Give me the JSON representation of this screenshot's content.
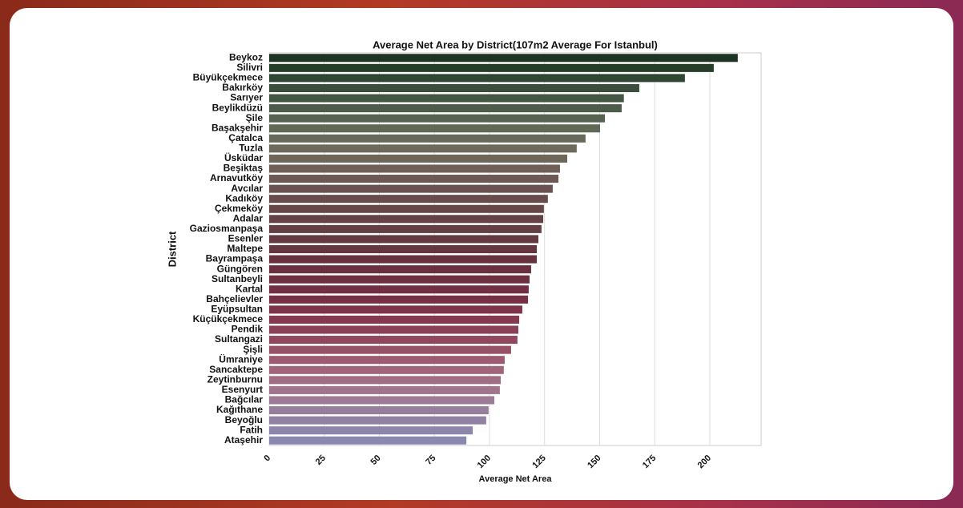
{
  "chart_data": {
    "type": "barh",
    "title": "Average Net Area by District(107m2 Average For Istanbul)",
    "xlabel": "Average Net Area",
    "ylabel": "District",
    "categories": [
      "Beykoz",
      "Silivri",
      "Büyükçekmece",
      "Bakırköy",
      "Sarıyer",
      "Beylikdüzü",
      "Şile",
      "Başakşehir",
      "Çatalca",
      "Tuzla",
      "Üsküdar",
      "Beşiktaş",
      "Arnavutköy",
      "Avcılar",
      "Kadıköy",
      "Çekmeköy",
      "Adalar",
      "Gaziosmanpaşa",
      "Esenler",
      "Maltepe",
      "Bayrampaşa",
      "Güngören",
      "Sultanbeyli",
      "Kartal",
      "Bahçelievler",
      "Eyüpsultan",
      "Küçükçekmece",
      "Pendik",
      "Sultangazi",
      "Şişli",
      "Ümraniye",
      "Sancaktepe",
      "Zeytinburnu",
      "Esenyurt",
      "Bağcılar",
      "Kağıthane",
      "Beyoğlu",
      "Fatih",
      "Ataşehir"
    ],
    "values": [
      212.7,
      201.8,
      188.7,
      168,
      161,
      160,
      152.4,
      150.2,
      143.6,
      139.6,
      135.3,
      132,
      131.3,
      128.7,
      126.5,
      124.7,
      124.4,
      123.6,
      122.2,
      121.5,
      121.5,
      118.9,
      118.2,
      117.8,
      117.5,
      114.9,
      113.5,
      113.1,
      112.7,
      109.8,
      106.9,
      106.5,
      105.1,
      104.7,
      102.2,
      99.6,
      98.5,
      92.4,
      89.5
    ],
    "colors": [
      "#1d3422",
      "#263d2a",
      "#2f4632",
      "#3a4e3b",
      "#445543",
      "#4d5c4a",
      "#566350",
      "#5f6955",
      "#67695a",
      "#6d6a5b",
      "#6f665a",
      "#6f5f57",
      "#6d5954",
      "#6a5250",
      "#684c4c",
      "#664748",
      "#644245",
      "#633e43",
      "#633a41",
      "#64363f",
      "#67323e",
      "#6a303f",
      "#6e2f40",
      "#722e42",
      "#772f45",
      "#7d3349",
      "#83394f",
      "#8a4057",
      "#91485f",
      "#985268",
      "#9d5b71",
      "#a0657b",
      "#a16d84",
      "#a0748d",
      "#9d7a95",
      "#987e9d",
      "#9381a4",
      "#8e85ab",
      "#8a88b0"
    ],
    "xlim": [
      0,
      223.3
    ],
    "xticks": [
      0,
      25,
      50,
      75,
      100,
      125,
      150,
      175,
      200
    ],
    "grid": true
  }
}
